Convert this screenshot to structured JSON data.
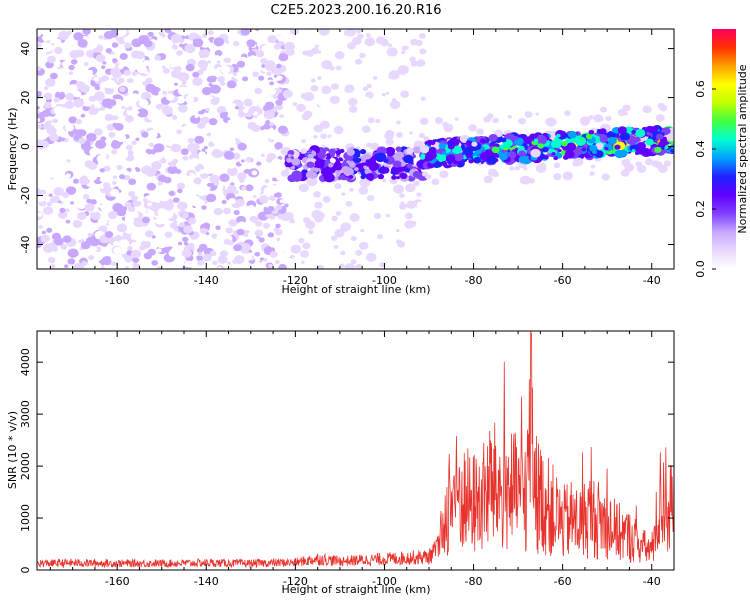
{
  "title": "C2E5.2023.200.16.20.R16",
  "colors": {
    "snr_line": "#e8322c",
    "spectrogram_low": "#e6d6ff",
    "spectrogram_mid": "#6a00f0",
    "colormap": [
      "#ffffff",
      "#e8d8ff",
      "#c8a8ff",
      "#8040ff",
      "#6000ff",
      "#2020ff",
      "#00a0ff",
      "#00ffd0",
      "#40ff40",
      "#c0ff00",
      "#ffff00",
      "#ffa000",
      "#ff3000",
      "#ff0060"
    ]
  },
  "chart_data": [
    {
      "type": "heatmap",
      "name": "spectrogram",
      "xlabel": "Height of straight line (km)",
      "ylabel": "Frequency (Hz)",
      "xlim": [
        -178,
        -35
      ],
      "ylim": [
        -50,
        48
      ],
      "xticks": [
        -160,
        -140,
        -120,
        -100,
        -80,
        -60,
        -40
      ],
      "yticks": [
        -40,
        -20,
        0,
        20,
        40
      ],
      "colorbar": {
        "label": "Normalized spectral amplitude",
        "range": [
          0,
          0.8
        ],
        "ticks": [
          0.0,
          0.2,
          0.4,
          0.6
        ]
      },
      "regions": [
        {
          "x": [
            -178,
            -122
          ],
          "description_values": {
            "freq_spread": [
              -50,
              48
            ],
            "amplitude": [
              0,
              0.15
            ]
          }
        },
        {
          "x": [
            -122,
            -91
          ],
          "description_values": {
            "freq_center": -7,
            "freq_halfwidth": 6,
            "amplitude": [
              0.1,
              0.3
            ]
          }
        },
        {
          "x": [
            -91,
            -35
          ],
          "description_values": {
            "freq_center_start": -3,
            "freq_center_end": 3,
            "freq_halfwidth": 5,
            "amplitude": [
              0.2,
              0.8
            ]
          }
        }
      ]
    },
    {
      "type": "line",
      "name": "snr",
      "xlabel": "Height of straight line (km)",
      "ylabel": "SNR (10 * v/v)",
      "xlim": [
        -178,
        -35
      ],
      "ylim": [
        0,
        4600
      ],
      "xticks": [
        -160,
        -140,
        -120,
        -100,
        -80,
        -60,
        -40
      ],
      "yticks": [
        0,
        1000,
        2000,
        3000,
        4000
      ],
      "series": [
        {
          "x": [
            -178,
            -170,
            -160,
            -150,
            -140,
            -130,
            -120,
            -115,
            -110,
            -100,
            -90,
            -88,
            -86,
            -84,
            -82,
            -80,
            -78,
            -76,
            -74,
            -72,
            -70,
            -68,
            -67,
            -66,
            -64,
            -62,
            -60,
            -58,
            -56,
            -54,
            -52,
            -50,
            -48,
            -46,
            -44,
            -42,
            -40,
            -38,
            -37,
            -36,
            -35
          ],
          "values": [
            150,
            160,
            150,
            150,
            160,
            150,
            170,
            250,
            200,
            250,
            300,
            500,
            1500,
            2000,
            1800,
            1700,
            1800,
            2200,
            2000,
            2100,
            1900,
            2000,
            4500,
            2000,
            1700,
            1500,
            1200,
            1300,
            1200,
            1400,
            1300,
            1200,
            1000,
            900,
            800,
            600,
            500,
            1800,
            2000,
            1600,
            1400
          ]
        }
      ]
    }
  ]
}
